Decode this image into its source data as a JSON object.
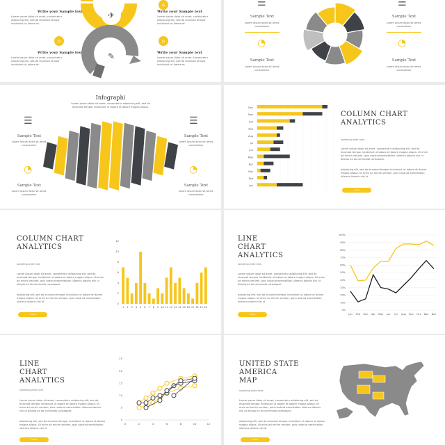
{
  "colors": {
    "yellow": "#f7c61b",
    "gray": "#8a8a8a",
    "dark": "#3f4348",
    "lightgray": "#bfbfbf"
  },
  "common": {
    "sample_title": "Sample Text",
    "sample_body": "Lorem ipsum dolor sit amet, consectetur",
    "write_title": "Write your Sample text",
    "write_body": "Lorem ipsum dolor sit amet, consectetur adipiscing elit, sed do eiusmod tempor incididunt ut labore et",
    "subtitle": "someting write here",
    "para1": "Lorem ipsum dolor sit amet, consectetur adipiscing elit, sed do eiusmod tempor incididunt ut labore et dolore magna aliqua. Ut enim ad minim veniam, quis nostrud exercitation ullamco laboris nisi ut aliquip ex ea commodo consequat.",
    "para2": "adipiscing elit, sed do eiusmod tempor incididunt ut labore et dolore magna aliqua. Ut enim ad minim veniam, quis nostrud exercitation ullamco laboris nisi ut",
    "button": "more"
  },
  "slide1": {
    "icons": [
      "plane-icon",
      "wrench-icon"
    ]
  },
  "slide3": {
    "title": "Infographi",
    "desc": "Lorem ipsum dolor sit amet, consectetur adipiscing elit, sed do eiusmod tempor incididunt ut labore et dolore magna aliqua."
  },
  "slide4": {
    "title_l1": "COLUMN CHART",
    "title_l2": "ANALYTICS"
  },
  "slide5": {
    "title_l1": "COLUMN CHART",
    "title_l2": "ANALYTICS"
  },
  "slide6": {
    "title_l1": "LINE",
    "title_l2": "CHART",
    "title_l3": "ANALYTICS"
  },
  "slide7": {
    "title_l1": "LINE",
    "title_l2": "CHART",
    "title_l3": "ANALYTICS"
  },
  "slide8": {
    "title_l1": "UNITED STATE",
    "title_l2": "AMERICA",
    "title_l3": "MAP"
  },
  "chart_data": [
    {
      "type": "pie",
      "values": [
        1,
        1,
        1,
        1,
        1,
        1,
        1,
        1,
        1
      ],
      "colors": [
        "#f7c61b",
        "#3f4348",
        "#8a8a8a",
        "#f7c61b",
        "#8a8a8a",
        "#3f4348",
        "#bfbfbf",
        "#8a8a8a",
        "#f7c61b"
      ]
    },
    {
      "type": "bar",
      "orientation": "horizontal",
      "categories": [
        "Dec",
        "Nov",
        "Oct",
        "Sep",
        "Aug",
        "Jul",
        "Jun",
        "May",
        "Apr",
        "Mar",
        "Feb",
        "Jan"
      ],
      "series": [
        {
          "values": [
            100,
            70,
            50,
            30,
            30,
            25,
            20,
            10,
            10,
            5,
            10,
            30
          ],
          "color": "#f7c61b"
        },
        {
          "values": [
            8,
            30,
            8,
            10,
            5,
            15,
            15,
            40,
            15,
            15,
            5,
            40
          ],
          "color": "#3f4348"
        }
      ],
      "xlim": [
        0,
        100
      ]
    },
    {
      "type": "bar",
      "categories": [
        "1",
        "2",
        "3",
        "4",
        "5",
        "6",
        "7",
        "8",
        "9",
        "10",
        "11",
        "12",
        "13",
        "14",
        "15",
        "16",
        "17",
        "18",
        "19",
        "20"
      ],
      "values": [
        7,
        5,
        2,
        4,
        10,
        4,
        2,
        1,
        3,
        2,
        5,
        7,
        4,
        5,
        3,
        2,
        1,
        4,
        6,
        7
      ],
      "ylim": [
        0,
        12
      ],
      "yticks": [
        0,
        2,
        4,
        6,
        8,
        10,
        12
      ]
    },
    {
      "type": "line",
      "categories": [
        "Jan",
        "Feb",
        "Mar",
        "Apr",
        "May",
        "Jun",
        "Jul",
        "Aug",
        "Sep",
        "Oct",
        "Nov",
        "Dec"
      ],
      "series": [
        {
          "values": [
            60,
            39,
            40,
            56,
            65,
            65,
            82,
            88,
            88,
            87,
            92,
            86
          ],
          "color": "#f7c61b"
        },
        {
          "values": [
            25,
            11,
            15,
            47,
            30,
            28,
            23,
            33,
            43,
            55,
            66,
            55
          ],
          "color": "#1a1a1a"
        }
      ],
      "ylim": [
        0,
        100
      ],
      "yticks": [
        "0%",
        "10%",
        "20%",
        "30%",
        "40%",
        "50%",
        "60%",
        "70%",
        "80%",
        "90%",
        "100%"
      ]
    },
    {
      "type": "scatter",
      "series": [
        {
          "points": [
            [
              2,
              7
            ],
            [
              3,
              9
            ],
            [
              4,
              11
            ],
            [
              5,
              13
            ],
            [
              6,
              15
            ],
            [
              8,
              17
            ],
            [
              10,
              18
            ]
          ],
          "color": "#f7c61b"
        },
        {
          "points": [
            [
              2,
              5
            ],
            [
              4,
              7
            ],
            [
              5,
              9
            ],
            [
              6,
              11
            ],
            [
              8,
              13
            ],
            [
              10,
              14
            ]
          ],
          "color": "#f7c61b"
        },
        {
          "points": [
            [
              2,
              7
            ],
            [
              3,
              7
            ],
            [
              4,
              9
            ],
            [
              5,
              10
            ],
            [
              6,
              11
            ],
            [
              7,
              14
            ],
            [
              8,
              15
            ],
            [
              10,
              16
            ]
          ],
          "color": "#3f4348"
        },
        {
          "points": [
            [
              3,
              5
            ],
            [
              5,
              8
            ],
            [
              6,
              12
            ],
            [
              8,
              16
            ],
            [
              10,
              17
            ],
            [
              7,
              10
            ]
          ],
          "color": "#3f4348"
        }
      ],
      "xlim": [
        0,
        12
      ],
      "ylim": [
        0,
        25
      ],
      "xticks": [
        0,
        2,
        4,
        6,
        8,
        10,
        12
      ],
      "yticks": [
        0,
        5,
        10,
        15,
        20,
        25
      ]
    }
  ]
}
